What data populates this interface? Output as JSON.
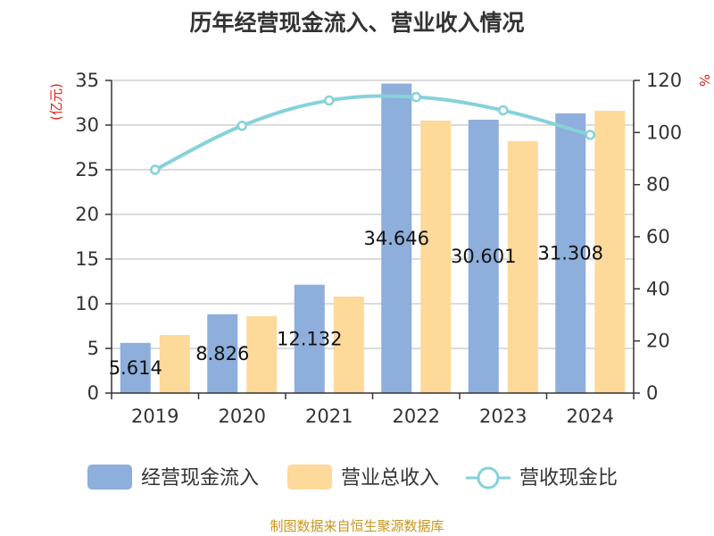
{
  "chart_data": {
    "type": "bar",
    "title": "历年经营现金流入、营业收入情况",
    "categories": [
      "2019",
      "2020",
      "2021",
      "2022",
      "2023",
      "2024"
    ],
    "series": [
      {
        "name": "经营现金流入",
        "type": "bar",
        "axis": "left",
        "color": "#8eaedb",
        "values": [
          5.614,
          8.826,
          12.132,
          34.646,
          30.601,
          31.308
        ]
      },
      {
        "name": "营业总收入",
        "type": "bar",
        "axis": "left",
        "color": "#fdd99a",
        "values": [
          6.5,
          8.6,
          10.8,
          30.5,
          28.2,
          31.6
        ]
      },
      {
        "name": "营收现金比",
        "type": "line",
        "axis": "right",
        "color": "#86d2d9",
        "values": [
          85.7,
          102.6,
          112.3,
          113.6,
          108.5,
          99.1
        ]
      }
    ],
    "data_labels": [
      "5.614",
      "8.826",
      "12.132",
      "34.646",
      "30.601",
      "31.308"
    ],
    "y_left": {
      "label": "(亿元)",
      "ylim": [
        0,
        35
      ],
      "ticks": [
        "0",
        "5",
        "10",
        "15",
        "20",
        "25",
        "30",
        "35"
      ]
    },
    "y_right": {
      "label": "%",
      "ylim": [
        0,
        120
      ],
      "ticks": [
        "0",
        "20",
        "40",
        "60",
        "80",
        "100",
        "120"
      ]
    },
    "grid": true,
    "legend_position": "bottom"
  },
  "source": "制图数据来自恒生聚源数据库"
}
